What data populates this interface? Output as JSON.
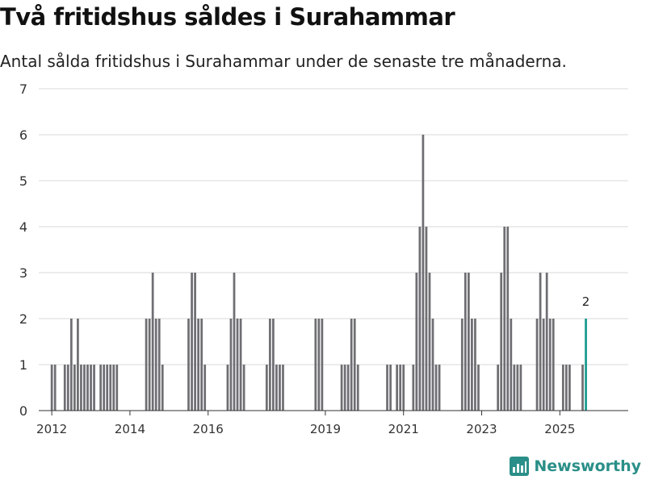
{
  "title": "Två fritidshus såldes i Surahammar",
  "subtitle": "Antal sålda fritidshus i Surahammar under de senaste tre månaderna.",
  "brand": {
    "name": "Newsworthy",
    "icon": "newsworthy-logo-icon"
  },
  "colors": {
    "bar": "#6e6e73",
    "highlight": "#1a9a8f",
    "grid": "#d9d9d9",
    "axis": "#333333"
  },
  "chart_data": {
    "type": "bar",
    "ylim": [
      0,
      7
    ],
    "yticks": [
      0,
      1,
      2,
      3,
      4,
      5,
      6,
      7
    ],
    "xlim": [
      "2011-09",
      "2026-10"
    ],
    "xticks": [
      "2012",
      "2014",
      "2016",
      "2019",
      "2021",
      "2023",
      "2025"
    ],
    "grid": true,
    "highlight_label": "2",
    "series": [
      {
        "x": [
          "2012-01",
          "2012-02",
          "2012-05",
          "2012-06",
          "2012-07",
          "2012-08",
          "2012-09",
          "2012-10",
          "2012-11",
          "2012-12",
          "2013-01",
          "2013-02",
          "2013-04",
          "2013-05",
          "2013-06",
          "2013-07",
          "2013-08",
          "2013-09",
          "2014-06",
          "2014-07",
          "2014-08",
          "2014-09",
          "2014-10",
          "2014-11",
          "2015-07",
          "2015-08",
          "2015-09",
          "2015-10",
          "2015-11",
          "2015-12",
          "2016-07",
          "2016-08",
          "2016-09",
          "2016-10",
          "2016-11",
          "2016-12",
          "2017-07",
          "2017-08",
          "2017-09",
          "2017-10",
          "2017-11",
          "2017-12",
          "2018-10",
          "2018-11",
          "2018-12",
          "2019-06",
          "2019-07",
          "2019-08",
          "2019-09",
          "2019-10",
          "2019-11",
          "2020-08",
          "2020-09",
          "2020-11",
          "2020-12",
          "2021-01",
          "2021-04",
          "2021-05",
          "2021-06",
          "2021-07",
          "2021-08",
          "2021-09",
          "2021-10",
          "2021-11",
          "2021-12",
          "2022-07",
          "2022-08",
          "2022-09",
          "2022-10",
          "2022-11",
          "2022-12",
          "2023-06",
          "2023-07",
          "2023-08",
          "2023-09",
          "2023-10",
          "2023-11",
          "2023-12",
          "2024-01",
          "2024-06",
          "2024-07",
          "2024-08",
          "2024-09",
          "2024-10",
          "2024-11",
          "2025-02",
          "2025-03",
          "2025-04",
          "2025-08",
          "2025-09"
        ],
        "values": [
          1,
          1,
          1,
          1,
          2,
          1,
          2,
          1,
          1,
          1,
          1,
          1,
          1,
          1,
          1,
          1,
          1,
          1,
          2,
          2,
          3,
          2,
          2,
          1,
          2,
          3,
          3,
          2,
          2,
          1,
          1,
          2,
          3,
          2,
          2,
          1,
          1,
          2,
          2,
          1,
          1,
          1,
          2,
          2,
          2,
          1,
          1,
          1,
          2,
          2,
          1,
          1,
          1,
          1,
          1,
          1,
          1,
          3,
          4,
          6,
          4,
          3,
          2,
          1,
          1,
          2,
          3,
          3,
          2,
          2,
          1,
          1,
          3,
          4,
          4,
          2,
          1,
          1,
          1,
          2,
          3,
          2,
          3,
          2,
          2,
          1,
          1,
          1,
          1,
          2
        ]
      }
    ]
  }
}
